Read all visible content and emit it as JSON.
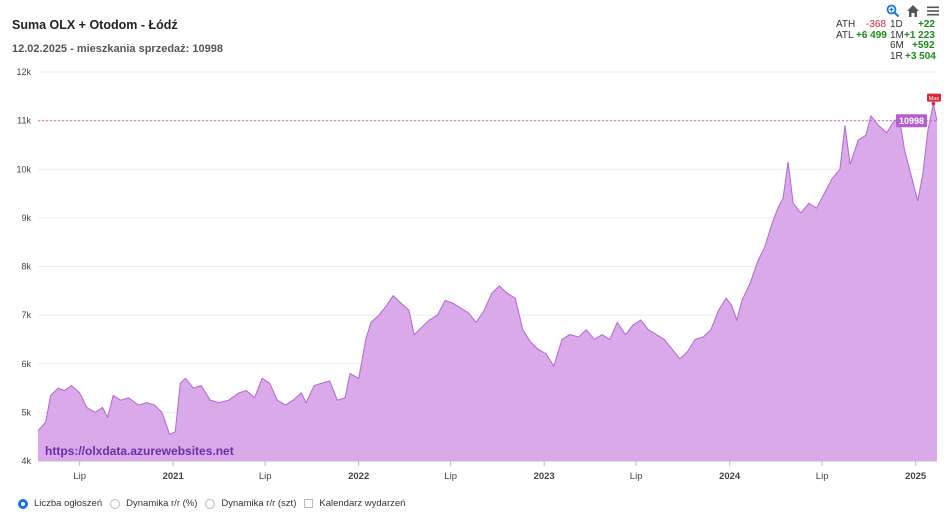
{
  "header": {
    "title": "Suma OLX + Otodom - Łódź",
    "subtitle": "12.02.2025 - mieszkania sprzedaż: 10998"
  },
  "toolbar": {
    "zoom_icon": "zoom-icon",
    "home_icon": "home-icon",
    "menu_icon": "menu-icon"
  },
  "stats": {
    "ath_label": "ATH",
    "ath_value": "-368",
    "atl_label": "ATL",
    "atl_value": "+6 499",
    "d1_label": "1D",
    "d1_value": "+22",
    "m1_label": "1M",
    "m1_value": "+1 223",
    "m6_label": "6M",
    "m6_value": "+592",
    "r1_label": "1R",
    "r1_value": "+3 504"
  },
  "watermark": "https://olxdata.azurewebsites.net",
  "last_label": "10998",
  "max_label": "Max",
  "legend": {
    "items": [
      {
        "label": "Liczba ogłoszeń",
        "type": "radio",
        "selected": true
      },
      {
        "label": "Dynamika r/r (%)",
        "type": "radio",
        "selected": false
      },
      {
        "label": "Dynamika r/r (szt)",
        "type": "radio",
        "selected": false
      },
      {
        "label": "Kalendarz wydarzeń",
        "type": "checkbox",
        "selected": false
      }
    ]
  },
  "colors": {
    "area_fill": "#d9a9e9",
    "area_line": "#b466d1",
    "ref_line": "#e05ab8",
    "badge_last": "#b35fd0",
    "badge_max": "#e0263b",
    "watermark": "#6b2fa8",
    "radio_on": "#1a73e8"
  },
  "chart_data": {
    "type": "area",
    "title": "Suma OLX + Otodom - Łódź",
    "xlabel": "",
    "ylabel": "",
    "ylim": [
      4000,
      12000
    ],
    "xlim": [
      "2020-04-10",
      "2025-02-12"
    ],
    "yticks": [
      "4k",
      "5k",
      "6k",
      "7k",
      "8k",
      "9k",
      "10k",
      "11k",
      "12k"
    ],
    "xticks": [
      {
        "label": "Lip",
        "date": "2020-07-01",
        "bold": false
      },
      {
        "label": "2021",
        "date": "2021-01-01",
        "bold": true
      },
      {
        "label": "Lip",
        "date": "2021-07-01",
        "bold": false
      },
      {
        "label": "2022",
        "date": "2022-01-01",
        "bold": true
      },
      {
        "label": "Lip",
        "date": "2022-07-01",
        "bold": false
      },
      {
        "label": "2023",
        "date": "2023-01-01",
        "bold": true
      },
      {
        "label": "Lip",
        "date": "2023-07-01",
        "bold": false
      },
      {
        "label": "2024",
        "date": "2024-01-01",
        "bold": true
      },
      {
        "label": "Lip",
        "date": "2024-07-01",
        "bold": false
      },
      {
        "label": "2025",
        "date": "2025-01-01",
        "bold": true
      }
    ],
    "reference_line": 10998,
    "series": [
      {
        "points": [
          [
            "2020-04-10",
            4620
          ],
          [
            "2020-04-25",
            4800
          ],
          [
            "2020-05-05",
            5350
          ],
          [
            "2020-05-20",
            5500
          ],
          [
            "2020-06-01",
            5450
          ],
          [
            "2020-06-15",
            5550
          ],
          [
            "2020-07-01",
            5400
          ],
          [
            "2020-07-15",
            5100
          ],
          [
            "2020-08-01",
            5000
          ],
          [
            "2020-08-15",
            5100
          ],
          [
            "2020-08-25",
            4900
          ],
          [
            "2020-09-05",
            5350
          ],
          [
            "2020-09-20",
            5250
          ],
          [
            "2020-10-05",
            5300
          ],
          [
            "2020-10-25",
            5150
          ],
          [
            "2020-11-10",
            5200
          ],
          [
            "2020-11-25",
            5150
          ],
          [
            "2020-12-10",
            5000
          ],
          [
            "2020-12-25",
            4550
          ],
          [
            "2021-01-05",
            4600
          ],
          [
            "2021-01-15",
            5600
          ],
          [
            "2021-01-25",
            5700
          ],
          [
            "2021-02-10",
            5500
          ],
          [
            "2021-02-25",
            5550
          ],
          [
            "2021-03-15",
            5250
          ],
          [
            "2021-04-01",
            5200
          ],
          [
            "2021-04-20",
            5250
          ],
          [
            "2021-05-10",
            5400
          ],
          [
            "2021-05-25",
            5450
          ],
          [
            "2021-06-10",
            5300
          ],
          [
            "2021-06-25",
            5700
          ],
          [
            "2021-07-10",
            5600
          ],
          [
            "2021-07-25",
            5250
          ],
          [
            "2021-08-10",
            5150
          ],
          [
            "2021-08-25",
            5250
          ],
          [
            "2021-09-10",
            5400
          ],
          [
            "2021-09-20",
            5200
          ],
          [
            "2021-10-05",
            5550
          ],
          [
            "2021-10-20",
            5600
          ],
          [
            "2021-11-05",
            5650
          ],
          [
            "2021-11-20",
            5250
          ],
          [
            "2021-12-05",
            5300
          ],
          [
            "2021-12-15",
            5800
          ],
          [
            "2022-01-01",
            5700
          ],
          [
            "2022-01-15",
            6500
          ],
          [
            "2022-01-25",
            6850
          ],
          [
            "2022-02-10",
            7000
          ],
          [
            "2022-02-25",
            7200
          ],
          [
            "2022-03-10",
            7400
          ],
          [
            "2022-03-25",
            7250
          ],
          [
            "2022-04-10",
            7100
          ],
          [
            "2022-04-20",
            6600
          ],
          [
            "2022-05-05",
            6750
          ],
          [
            "2022-05-20",
            6900
          ],
          [
            "2022-06-05",
            7000
          ],
          [
            "2022-06-20",
            7300
          ],
          [
            "2022-07-05",
            7250
          ],
          [
            "2022-07-20",
            7150
          ],
          [
            "2022-08-05",
            7050
          ],
          [
            "2022-08-20",
            6850
          ],
          [
            "2022-09-05",
            7100
          ],
          [
            "2022-09-20",
            7450
          ],
          [
            "2022-10-05",
            7600
          ],
          [
            "2022-10-20",
            7450
          ],
          [
            "2022-11-05",
            7350
          ],
          [
            "2022-11-20",
            6700
          ],
          [
            "2022-12-05",
            6450
          ],
          [
            "2022-12-20",
            6300
          ],
          [
            "2023-01-05",
            6200
          ],
          [
            "2023-01-20",
            5950
          ],
          [
            "2023-02-05",
            6500
          ],
          [
            "2023-02-20",
            6600
          ],
          [
            "2023-03-10",
            6550
          ],
          [
            "2023-03-25",
            6700
          ],
          [
            "2023-04-10",
            6500
          ],
          [
            "2023-04-25",
            6600
          ],
          [
            "2023-05-10",
            6500
          ],
          [
            "2023-05-25",
            6850
          ],
          [
            "2023-06-10",
            6600
          ],
          [
            "2023-06-25",
            6800
          ],
          [
            "2023-07-10",
            6900
          ],
          [
            "2023-07-25",
            6700
          ],
          [
            "2023-08-10",
            6600
          ],
          [
            "2023-08-25",
            6500
          ],
          [
            "2023-09-10",
            6300
          ],
          [
            "2023-09-25",
            6100
          ],
          [
            "2023-10-10",
            6250
          ],
          [
            "2023-10-25",
            6500
          ],
          [
            "2023-11-10",
            6550
          ],
          [
            "2023-11-25",
            6700
          ],
          [
            "2023-12-10",
            7100
          ],
          [
            "2023-12-25",
            7350
          ],
          [
            "2024-01-05",
            7200
          ],
          [
            "2024-01-15",
            6900
          ],
          [
            "2024-01-25",
            7300
          ],
          [
            "2024-02-10",
            7650
          ],
          [
            "2024-02-25",
            8100
          ],
          [
            "2024-03-10",
            8400
          ],
          [
            "2024-03-25",
            8900
          ],
          [
            "2024-04-05",
            9200
          ],
          [
            "2024-04-15",
            9400
          ],
          [
            "2024-04-25",
            10150
          ],
          [
            "2024-05-05",
            9300
          ],
          [
            "2024-05-20",
            9100
          ],
          [
            "2024-06-05",
            9300
          ],
          [
            "2024-06-20",
            9200
          ],
          [
            "2024-07-05",
            9500
          ],
          [
            "2024-07-20",
            9800
          ],
          [
            "2024-08-05",
            10000
          ],
          [
            "2024-08-15",
            10900
          ],
          [
            "2024-08-25",
            10100
          ],
          [
            "2024-09-10",
            10600
          ],
          [
            "2024-09-25",
            10700
          ],
          [
            "2024-10-05",
            11100
          ],
          [
            "2024-10-20",
            10900
          ],
          [
            "2024-11-05",
            10750
          ],
          [
            "2024-11-20",
            11000
          ],
          [
            "2024-11-30",
            11050
          ],
          [
            "2024-12-10",
            10400
          ],
          [
            "2024-12-25",
            9800
          ],
          [
            "2025-01-05",
            9350
          ],
          [
            "2025-01-15",
            9900
          ],
          [
            "2025-01-25",
            10800
          ],
          [
            "2025-02-05",
            11350
          ],
          [
            "2025-02-12",
            10998
          ]
        ]
      }
    ],
    "annotations": [
      {
        "label": "10998",
        "kind": "last-value"
      },
      {
        "label": "Max",
        "kind": "maximum",
        "value": 11350
      }
    ]
  }
}
